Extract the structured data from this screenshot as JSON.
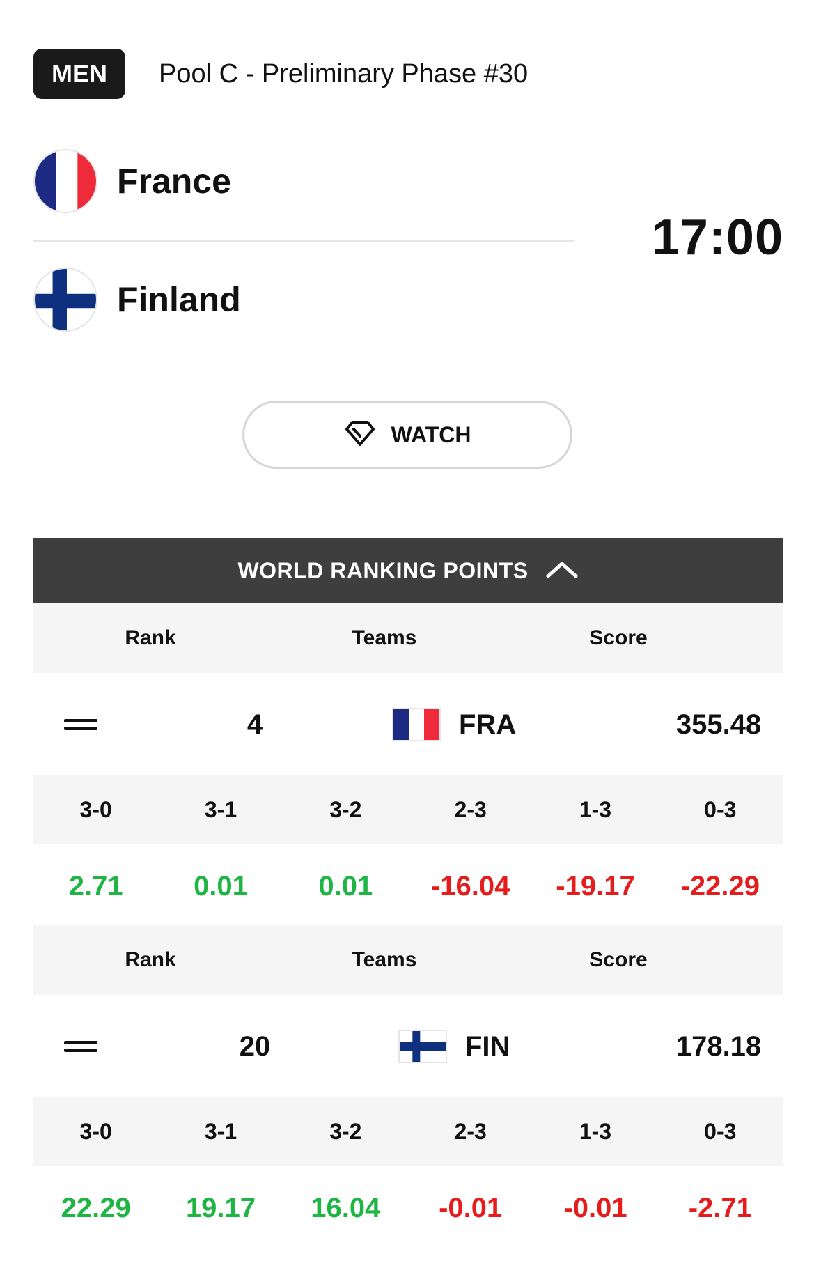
{
  "header": {
    "category": "MEN",
    "phase": "Pool C - Preliminary Phase #30"
  },
  "match": {
    "home": {
      "name": "France",
      "flag_icon": "france-flag-icon"
    },
    "away": {
      "name": "Finland",
      "flag_icon": "finland-flag-icon"
    },
    "time": "17:00"
  },
  "watch": {
    "label": "WATCH",
    "icon": "diamond-icon"
  },
  "ranking": {
    "title": "WORLD RANKING POINTS",
    "toggle_icon": "chevron-up-icon",
    "headers": {
      "rank": "Rank",
      "teams": "Teams",
      "score": "Score"
    },
    "result_labels": [
      "3-0",
      "3-1",
      "3-2",
      "2-3",
      "1-3",
      "0-3"
    ],
    "teams": [
      {
        "rank": "4",
        "code": "FRA",
        "score": "355.48",
        "trend_icon": "equal-icon",
        "points": [
          "2.71",
          "0.01",
          "0.01",
          "-16.04",
          "-19.17",
          "-22.29"
        ]
      },
      {
        "rank": "20",
        "code": "FIN",
        "score": "178.18",
        "trend_icon": "equal-icon",
        "points": [
          "22.29",
          "19.17",
          "16.04",
          "-0.01",
          "-0.01",
          "-2.71"
        ]
      }
    ]
  },
  "colors": {
    "positive": "#1fb545",
    "negative": "#e41c1c",
    "bar": "#3e3e3e"
  }
}
